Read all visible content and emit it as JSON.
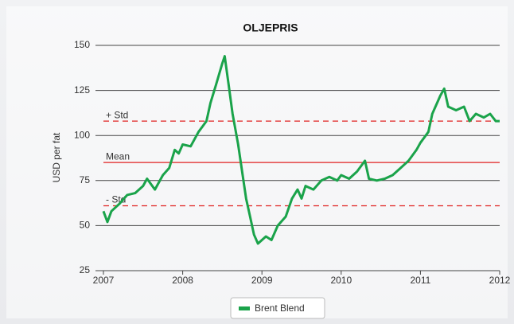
{
  "chart_data": {
    "type": "line",
    "title": "OLJEPRIS",
    "y_label": "USD per fat",
    "xlim": [
      2007,
      2012
    ],
    "xticks": [
      2007,
      2008,
      2009,
      2010,
      2011,
      2012
    ],
    "ylim": [
      25,
      150
    ],
    "yticks": [
      25,
      50,
      75,
      100,
      125,
      150
    ],
    "grid": true,
    "legend": "bottom",
    "x": [
      2007.0,
      2007.05,
      2007.1,
      2007.2,
      2007.3,
      2007.4,
      2007.5,
      2007.55,
      2007.65,
      2007.75,
      2007.83,
      2007.9,
      2007.95,
      2008.0,
      2008.1,
      2008.2,
      2008.3,
      2008.35,
      2008.42,
      2008.5,
      2008.53,
      2008.58,
      2008.63,
      2008.7,
      2008.75,
      2008.8,
      2008.85,
      2008.9,
      2008.95,
      2009.0,
      2009.05,
      2009.12,
      2009.2,
      2009.3,
      2009.38,
      2009.45,
      2009.5,
      2009.55,
      2009.65,
      2009.75,
      2009.85,
      2009.95,
      2010.0,
      2010.1,
      2010.2,
      2010.3,
      2010.35,
      2010.45,
      2010.55,
      2010.65,
      2010.75,
      2010.85,
      2010.95,
      2011.0,
      2011.1,
      2011.15,
      2011.25,
      2011.3,
      2011.35,
      2011.45,
      2011.55,
      2011.62,
      2011.7,
      2011.8,
      2011.88,
      2011.95,
      2012.0
    ],
    "series": [
      {
        "name": "Brent Blend",
        "color": "#1aa34a",
        "values": [
          58,
          52,
          58,
          62,
          67,
          68,
          72,
          76,
          70,
          78,
          82,
          92,
          90,
          95,
          94,
          102,
          108,
          118,
          128,
          140,
          144,
          128,
          112,
          95,
          80,
          65,
          55,
          45,
          40,
          42,
          44,
          42,
          50,
          55,
          65,
          70,
          65,
          72,
          70,
          75,
          77,
          75,
          78,
          76,
          80,
          86,
          76,
          75,
          76,
          78,
          82,
          86,
          92,
          96,
          102,
          112,
          122,
          126,
          116,
          114,
          116,
          108,
          112,
          110,
          112,
          108,
          108
        ]
      }
    ],
    "reference_lines": [
      {
        "label": "+ Std",
        "value": 108,
        "color": "#e02020",
        "dashed": true
      },
      {
        "label": "Mean",
        "value": 85,
        "color": "#e02020",
        "dashed": false
      },
      {
        "label": "- Std",
        "value": 61,
        "color": "#e02020",
        "dashed": true
      }
    ]
  }
}
